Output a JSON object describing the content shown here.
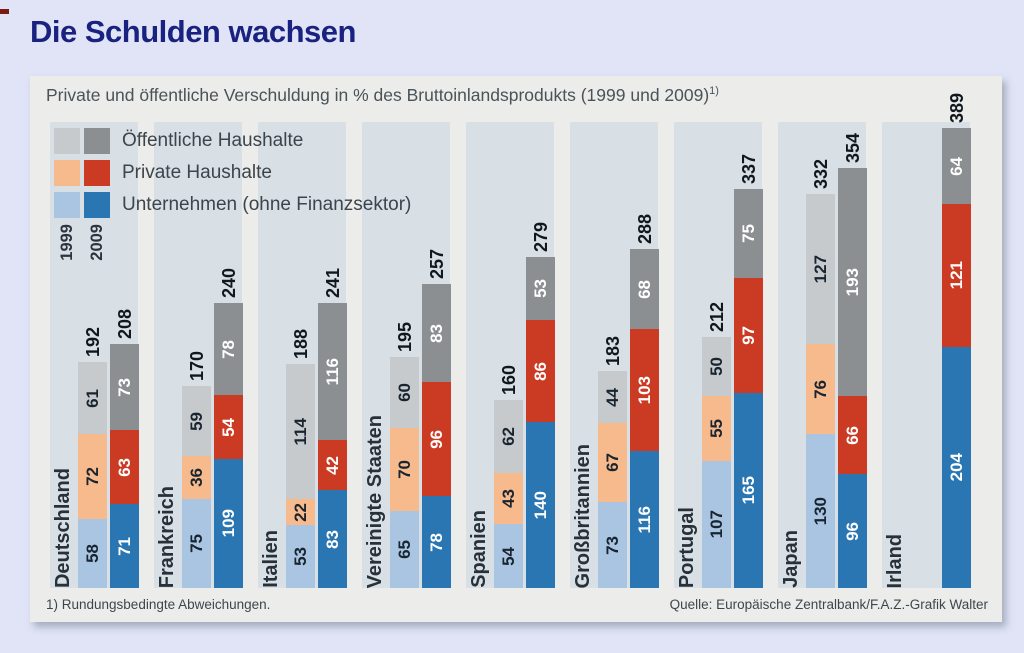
{
  "page": {
    "title": "Die Schulden wachsen",
    "subtitle": "Private und öffentliche Verschuldung in % des Bruttoinlandsprodukts (1999 und 2009)",
    "subtitle_sup": "1)",
    "footnote": "1) Rundungsbedingte Abweichungen.",
    "source": "Quelle: Europäische Zentralbank/F.A.Z.-Grafik Walter"
  },
  "legend": {
    "years": [
      "1999",
      "2009"
    ],
    "items": [
      {
        "label": "Öffentliche Haushalte",
        "colors": {
          "1999": "#c7cacd",
          "2009": "#8b8f92"
        }
      },
      {
        "label": "Private Haushalte",
        "colors": {
          "1999": "#f7ba8c",
          "2009": "#cb3a22"
        }
      },
      {
        "label": "Unternehmen (ohne Finanzsektor)",
        "colors": {
          "1999": "#a9c5e2",
          "2009": "#2a76b2"
        }
      }
    ]
  },
  "style": {
    "page_bg": "#e0e4f6",
    "panel_bg": "#ecedeb",
    "stripe_bg": "#d9e0e5",
    "title_color": "#1a2280",
    "year_segment_colors": {
      "1999": [
        "#a9c5e2",
        "#f7ba8c",
        "#c7cacd"
      ],
      "2009": [
        "#2a76b2",
        "#cb3a22",
        "#8b8f92"
      ]
    },
    "year_value_text_colors": {
      "1999": "#18242f",
      "2009": "#ffffff"
    }
  },
  "chart_data": {
    "type": "bar",
    "stacked": true,
    "title": "Private und öffentliche Verschuldung in % des Bruttoinlandsprodukts (1999 und 2009)",
    "ylabel": "% des Bruttoinlandsprodukts",
    "ylim": [
      0,
      389
    ],
    "grid": false,
    "legend_position": "top-left",
    "years": [
      "1999",
      "2009"
    ],
    "segment_order_bottom_to_top": [
      "Unternehmen (ohne Finanzsektor)",
      "Private Haushalte",
      "Öffentliche Haushalte"
    ],
    "countries": [
      {
        "name": "Deutschland",
        "bars": [
          {
            "year": "1999",
            "values": [
              58,
              72,
              61
            ],
            "total": 192
          },
          {
            "year": "2009",
            "values": [
              71,
              63,
              73
            ],
            "total": 208
          }
        ]
      },
      {
        "name": "Frankreich",
        "bars": [
          {
            "year": "1999",
            "values": [
              75,
              36,
              59
            ],
            "total": 170
          },
          {
            "year": "2009",
            "values": [
              109,
              54,
              78
            ],
            "total": 240
          }
        ]
      },
      {
        "name": "Italien",
        "bars": [
          {
            "year": "1999",
            "values": [
              53,
              22,
              114
            ],
            "total": 188
          },
          {
            "year": "2009",
            "values": [
              83,
              42,
              116
            ],
            "total": 241
          }
        ]
      },
      {
        "name": "Vereinigte Staaten",
        "bars": [
          {
            "year": "1999",
            "values": [
              65,
              70,
              60
            ],
            "total": 195
          },
          {
            "year": "2009",
            "values": [
              78,
              96,
              83
            ],
            "total": 257
          }
        ]
      },
      {
        "name": "Spanien",
        "bars": [
          {
            "year": "1999",
            "values": [
              54,
              43,
              62
            ],
            "total": 160
          },
          {
            "year": "2009",
            "values": [
              140,
              86,
              53
            ],
            "total": 279
          }
        ]
      },
      {
        "name": "Großbritannien",
        "bars": [
          {
            "year": "1999",
            "values": [
              73,
              67,
              44
            ],
            "total": 183
          },
          {
            "year": "2009",
            "values": [
              116,
              103,
              68
            ],
            "total": 288
          }
        ]
      },
      {
        "name": "Portugal",
        "bars": [
          {
            "year": "1999",
            "values": [
              107,
              55,
              50
            ],
            "total": 212
          },
          {
            "year": "2009",
            "values": [
              165,
              97,
              75
            ],
            "total": 337
          }
        ]
      },
      {
        "name": "Japan",
        "bars": [
          {
            "year": "1999",
            "values": [
              130,
              76,
              127
            ],
            "total": 332
          },
          {
            "year": "2009",
            "values": [
              96,
              66,
              193
            ],
            "total": 354
          }
        ]
      },
      {
        "name": "Irland",
        "bars": [
          null,
          {
            "year": "2009",
            "values": [
              204,
              121,
              64
            ],
            "total": 389
          }
        ]
      }
    ]
  }
}
